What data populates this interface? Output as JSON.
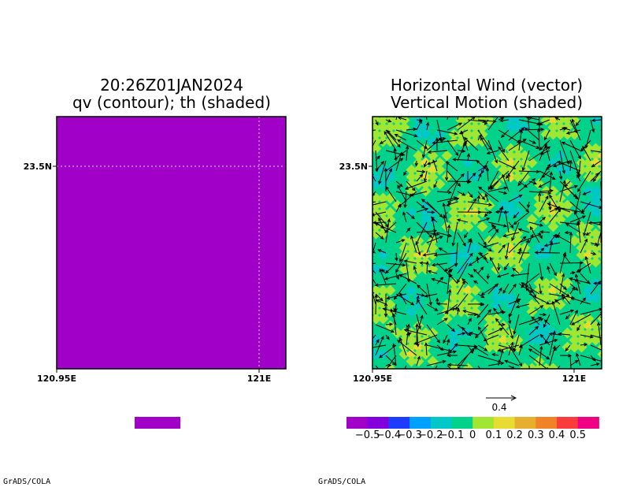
{
  "left_panel": {
    "title_line1": "20:26Z01JAN2024",
    "title_line2": "qv (contour); th (shaded)",
    "fill_color": "#a000c8"
  },
  "right_panel": {
    "title_line1": "Horizontal Wind (vector)",
    "title_line2": "Vertical Motion (shaded)",
    "reference_vector_label": "0.4"
  },
  "credit": "GrADS/COLA",
  "chart_data": [
    {
      "type": "heatmap",
      "title": "20:26Z01JAN2024 qv (contour); th (shaded)",
      "x_ticks": [
        "120.95E",
        "121E"
      ],
      "y_ticks": [
        "23.5N"
      ],
      "field": "uniform single shading level",
      "colorbar": [
        "#a000c8"
      ]
    },
    {
      "type": "heatmap",
      "title": "Horizontal Wind (vector) Vertical Motion (shaded)",
      "x_ticks": [
        "120.95E",
        "121E"
      ],
      "y_ticks": [
        "23.5N"
      ],
      "colorbar": {
        "colors": [
          "#a000c8",
          "#8200dc",
          "#1e3cff",
          "#00a0ff",
          "#00c8c8",
          "#00d28c",
          "#a0e632",
          "#e6dc32",
          "#e6af2d",
          "#f08228",
          "#fa3c3c",
          "#f00082"
        ],
        "labels": [
          "-0.5",
          "-0.4",
          "-0.3",
          "-0.2",
          "-0.1",
          "0",
          "0.1",
          "0.2",
          "0.3",
          "0.4",
          "0.5"
        ]
      },
      "reference_vector": 0.4,
      "field_palette": [
        "#00d28c",
        "#a0e632",
        "#00c8c8",
        "#e6dc32"
      ]
    }
  ]
}
